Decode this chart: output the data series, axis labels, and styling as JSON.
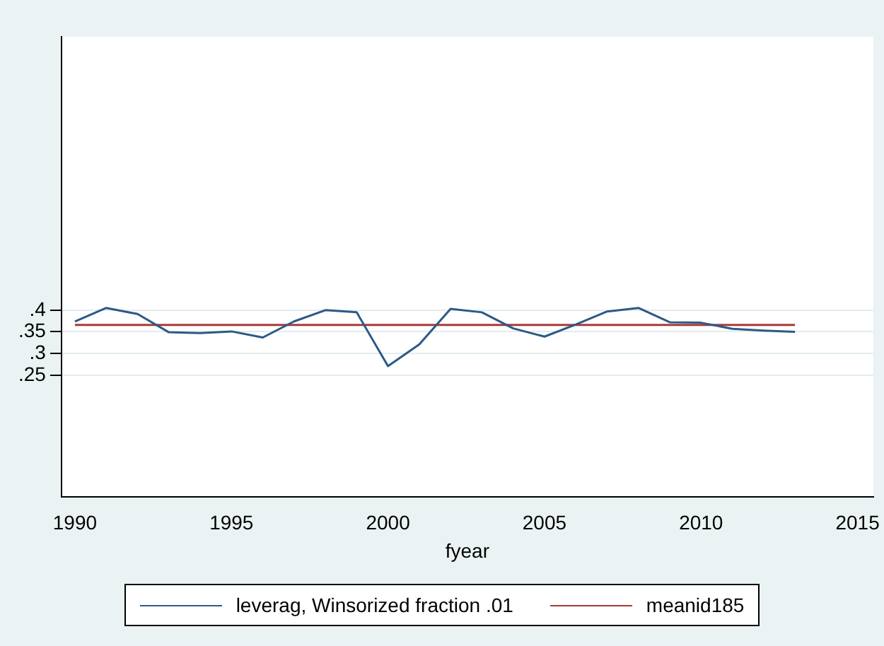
{
  "chart_data": {
    "type": "line",
    "xlabel": "fyear",
    "x": [
      1990,
      1991,
      1992,
      1993,
      1994,
      1995,
      1996,
      1997,
      1998,
      1999,
      2000,
      2001,
      2002,
      2003,
      2004,
      2005,
      2006,
      2007,
      2008,
      2009,
      2010,
      2011,
      2012,
      2013
    ],
    "series": [
      {
        "name": "leverag, Winsorized fraction .01",
        "color": "#2b5a86",
        "values": [
          0.374,
          0.405,
          0.391,
          0.349,
          0.347,
          0.351,
          0.337,
          0.374,
          0.4,
          0.395,
          0.271,
          0.321,
          0.403,
          0.395,
          0.358,
          0.339,
          0.367,
          0.397,
          0.405,
          0.372,
          0.371,
          0.357,
          0.353,
          0.35
        ]
      },
      {
        "name": "meanid185",
        "color": "#a83a3a",
        "values": [
          0.366,
          0.366,
          0.366,
          0.366,
          0.366,
          0.366,
          0.366,
          0.366,
          0.366,
          0.366,
          0.366,
          0.366,
          0.366,
          0.366,
          0.366,
          0.366,
          0.366,
          0.366,
          0.366,
          0.366,
          0.366,
          0.366,
          0.366,
          0.366
        ]
      }
    ],
    "xlim": [
      1989.57,
      2015.5
    ],
    "xticks": [
      1990,
      1995,
      2000,
      2005,
      2010,
      2015
    ],
    "ylim": [
      -0.03,
      1.03
    ],
    "yticks": [
      {
        "value": 0.25,
        "label": ".25"
      },
      {
        "value": 0.3,
        "label": ".3"
      },
      {
        "value": 0.35,
        "label": ".35"
      },
      {
        "value": 0.4,
        "label": ".4"
      }
    ],
    "grid": "y",
    "legend": "bottom",
    "marker": "none",
    "line_style": "solid"
  }
}
